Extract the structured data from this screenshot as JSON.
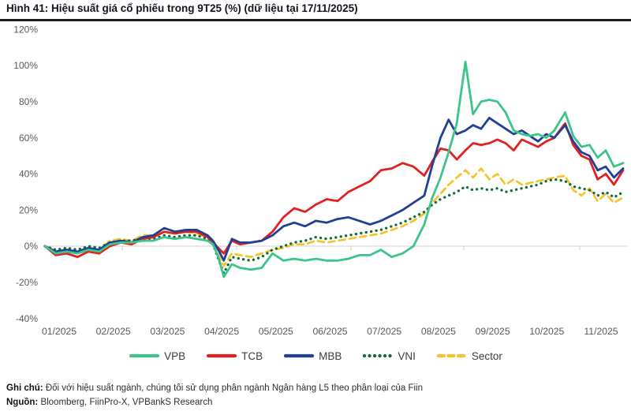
{
  "title": "Hình 41: Hiệu suất giá cổ phiếu trong 9T25 (%) (dữ liệu tại 17/11/2025)",
  "notes": {
    "note_label": "Ghi chú:",
    "note_text": "Đối với hiệu suất ngành, chúng tôi sử dụng phân ngành Ngân hàng L5 theo phân loại của Fiin",
    "source_label": "Nguồn:",
    "source_text": "Bloomberg, FiinPro-X, VPBankS Research"
  },
  "chart_data": {
    "type": "line",
    "title": "Hiệu suất giá cổ phiếu trong 9T25 (%)",
    "subtitle": "dữ liệu tại 17/11/2025",
    "x_unit": "month index, 1 = 01/01/2025, 11.67 = 17/11/2025",
    "x_tick_labels": [
      "01/2025",
      "02/2025",
      "03/2025",
      "04/2025",
      "05/2025",
      "06/2025",
      "07/2025",
      "08/2025",
      "09/2025",
      "10/2025",
      "11/2025"
    ],
    "x_tick_positions": [
      1,
      2,
      3,
      4,
      5,
      6,
      7,
      8,
      9,
      10,
      11
    ],
    "y_ticks": [
      120,
      100,
      80,
      60,
      40,
      20,
      0,
      -20,
      -40
    ],
    "y_tick_suffix": "%",
    "ylim": [
      -40,
      120
    ],
    "xlim": [
      1,
      11.67
    ],
    "grid": "horizontal zero-axis line only, small ticks on axis",
    "legend_position": "bottom",
    "axis_color": "#d9d9d9",
    "label_color": "#58595b",
    "x": [
      1.0,
      1.2,
      1.4,
      1.6,
      1.8,
      2.0,
      2.2,
      2.4,
      2.6,
      2.8,
      3.0,
      3.2,
      3.4,
      3.6,
      3.8,
      4.0,
      4.1,
      4.2,
      4.3,
      4.45,
      4.6,
      4.8,
      5.0,
      5.2,
      5.4,
      5.6,
      5.8,
      6.0,
      6.2,
      6.4,
      6.6,
      6.8,
      7.0,
      7.2,
      7.4,
      7.6,
      7.8,
      8.0,
      8.15,
      8.3,
      8.45,
      8.6,
      8.76,
      8.9,
      9.05,
      9.2,
      9.35,
      9.5,
      9.65,
      9.8,
      9.95,
      10.1,
      10.25,
      10.4,
      10.6,
      10.75,
      10.9,
      11.05,
      11.2,
      11.35,
      11.5,
      11.67
    ],
    "series": [
      {
        "name": "Sector",
        "color": "#f5c32c",
        "style": "dashed",
        "values": [
          0,
          -3,
          -2,
          -3,
          -1,
          -2,
          3,
          4,
          3,
          6,
          6,
          8,
          7,
          8,
          7,
          5,
          2,
          -5,
          -11,
          -4,
          -5,
          -6,
          -4,
          -2,
          -1,
          1,
          1,
          3,
          2,
          3,
          4,
          5,
          6,
          7,
          9,
          11,
          14,
          18,
          24,
          29,
          34,
          38,
          42,
          38,
          43,
          37,
          40,
          34,
          37,
          34,
          35,
          36,
          37,
          38,
          39,
          31,
          28,
          32,
          25,
          29,
          24,
          27
        ]
      },
      {
        "name": "VNI",
        "color": "#106b34",
        "style": "dotted",
        "values": [
          0,
          -2,
          -1,
          -2,
          0,
          -1,
          2,
          3,
          3,
          4,
          4,
          6,
          5,
          6,
          6,
          4,
          1,
          -7,
          -15,
          -6,
          -7,
          -8,
          -6,
          -2,
          0,
          2,
          3,
          5,
          4,
          5,
          6,
          7,
          8,
          9,
          11,
          13,
          16,
          19,
          23,
          26,
          28,
          30,
          33,
          31,
          32,
          31,
          32,
          30,
          31,
          32,
          33,
          34,
          36,
          37,
          36,
          33,
          32,
          31,
          28,
          30,
          27,
          30
        ]
      },
      {
        "name": "TCB",
        "color": "#e3201f",
        "style": "solid",
        "values": [
          0,
          -5,
          -4,
          -6,
          -3,
          -4,
          0,
          2,
          1,
          4,
          5,
          8,
          7,
          8,
          8,
          5,
          2,
          -1,
          -4,
          3,
          1,
          2,
          3,
          8,
          16,
          21,
          19,
          23,
          26,
          25,
          30,
          33,
          36,
          42,
          43,
          46,
          44,
          39,
          47,
          54,
          53,
          48,
          53,
          57,
          56,
          57,
          59,
          57,
          53,
          59,
          57,
          55,
          58,
          60,
          68,
          56,
          50,
          48,
          37,
          40,
          34,
          42
        ]
      },
      {
        "name": "MBB",
        "color": "#1f4096",
        "style": "solid",
        "values": [
          0,
          -3,
          -2,
          -3,
          -1,
          -2,
          2,
          3,
          2,
          5,
          6,
          10,
          8,
          9,
          9,
          6,
          3,
          -2,
          -8,
          4,
          2,
          2,
          3,
          6,
          11,
          13,
          11,
          14,
          13,
          15,
          16,
          14,
          12,
          14,
          17,
          20,
          24,
          28,
          45,
          60,
          70,
          62,
          64,
          67,
          65,
          71,
          68,
          65,
          62,
          64,
          61,
          58,
          62,
          60,
          67,
          58,
          52,
          50,
          42,
          44,
          38,
          43
        ]
      },
      {
        "name": "VPB",
        "color": "#3dc48b",
        "style": "solid",
        "values": [
          0,
          -4,
          -3,
          -4,
          -2,
          -3,
          1,
          2,
          2,
          3,
          3,
          5,
          4,
          5,
          4,
          3,
          1,
          -6,
          -17,
          -10,
          -12,
          -13,
          -12,
          -4,
          -8,
          -7,
          -8,
          -7,
          -8,
          -8,
          -7,
          -5,
          -5,
          -2,
          -6,
          -4,
          0,
          12,
          27,
          38,
          52,
          68,
          102,
          73,
          80,
          81,
          80,
          74,
          64,
          62,
          61,
          62,
          60,
          64,
          74,
          61,
          55,
          56,
          49,
          53,
          44,
          46
        ]
      }
    ]
  }
}
